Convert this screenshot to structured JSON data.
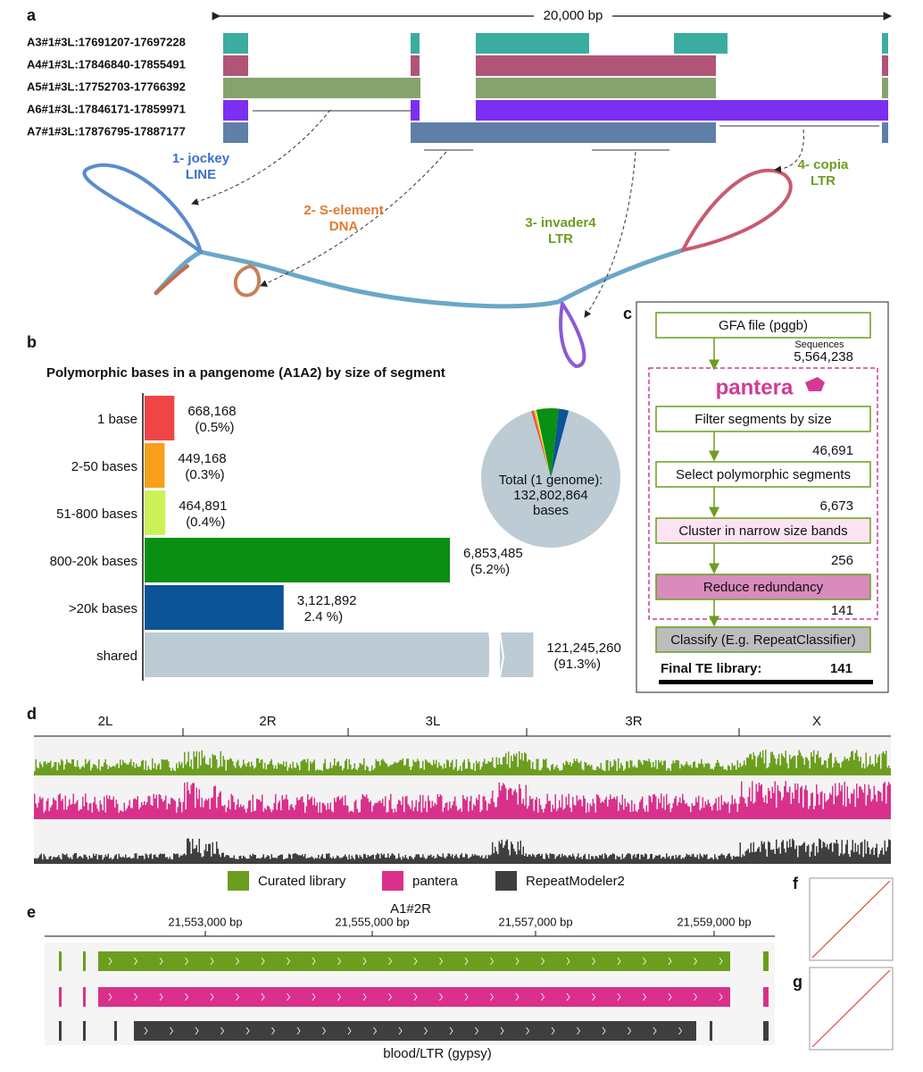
{
  "figure_labels": {
    "a": "a",
    "b": "b",
    "c": "c",
    "d": "d",
    "e": "e",
    "f": "f",
    "g": "g"
  },
  "panel_a": {
    "scale_label": "20,000 bp",
    "tracks": [
      "A3#1#3L:17691207-17697228",
      "A4#1#3L:17846840-17855491",
      "A5#1#3L:17752703-17766392",
      "A6#1#3L:17846171-17859971",
      "A7#1#3L:17876795-17887177"
    ],
    "elements": [
      {
        "name": "1- jockey",
        "class": "LINE"
      },
      {
        "name": "2- S-element",
        "class": "DNA"
      },
      {
        "name": "3- invader4",
        "class": "LTR"
      },
      {
        "name": "4- copia",
        "class": "LTR"
      }
    ]
  },
  "chart_data": {
    "type": "bar",
    "title": "Polymorphic bases in a pangenome (A1A2) by size of segment",
    "categories": [
      "1 base",
      "2-50 bases",
      "51-800 bases",
      "800-20k bases",
      ">20k bases",
      "shared"
    ],
    "values": [
      668168,
      449168,
      464891,
      6853485,
      3121892,
      121245260
    ],
    "value_labels": [
      "668,168",
      "449,168",
      "464,891",
      "6,853,485",
      "3,121,892",
      "121,245,260"
    ],
    "percent_labels": [
      "(0.5%)",
      "(0.3%)",
      "(0.4%)",
      "(5.2%)",
      "2.4 %)",
      "(91.3%)"
    ],
    "colors": [
      "#f04545",
      "#f7a01c",
      "#ccf25a",
      "#0a8f12",
      "#0b5496",
      "#bccbd4"
    ],
    "pie_label": "Total (1 genome):",
    "pie_total": {
      "value": 132802864,
      "label": "132,802,864"
    },
    "pie_unit": "bases"
  },
  "panel_c": {
    "steps": [
      "GFA file (pggb)",
      "Filter segments by size",
      "Select polymorphic segments",
      "Cluster in narrow size bands",
      "Reduce redundancy",
      "Classify (E.g. RepeatClassifier)"
    ],
    "sequences_label": "Sequences",
    "counts": [
      "5,564,238",
      "46,691",
      "6,673",
      "256",
      "141"
    ],
    "tool": "pantera",
    "final_label": "Final TE library:",
    "final_count": "141"
  },
  "panel_d": {
    "chromosomes": [
      "2L",
      "2R",
      "3L",
      "3R",
      "X"
    ],
    "legend": [
      "Curated library",
      "pantera",
      "RepeatModeler2"
    ]
  },
  "panel_e": {
    "title": "A1#2R",
    "ticks": [
      "21,553,000 bp",
      "21,555,000 bp",
      "21,557,000 bp",
      "21,559,000 bp"
    ],
    "feature": "blood/LTR (gypsy)"
  }
}
